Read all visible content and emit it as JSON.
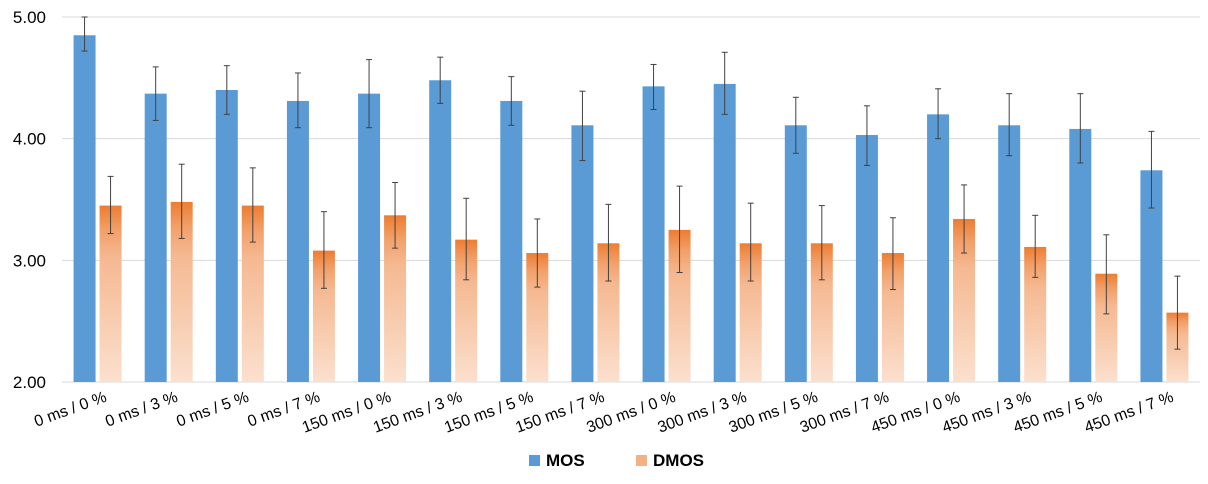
{
  "chart_data": {
    "type": "bar",
    "title": "",
    "xlabel": "",
    "ylabel": "",
    "ylim": [
      2.0,
      5.0
    ],
    "yticks": [
      "2.00",
      "3.00",
      "4.00",
      "5.00"
    ],
    "grid": true,
    "legend_position": "bottom-center",
    "categories": [
      "0 ms / 0 %",
      "0 ms / 3 %",
      "0 ms / 5 %",
      "0 ms / 7 %",
      "150 ms / 0 %",
      "150 ms / 3 %",
      "150 ms / 5 %",
      "150 ms / 7 %",
      "300 ms / 0 %",
      "300 ms / 3 %",
      "300 ms / 5 %",
      "300 ms / 7 %",
      "450 ms / 0 %",
      "450 ms / 3 %",
      "450 ms / 5 %",
      "450 ms / 7 %"
    ],
    "series": [
      {
        "name": "MOS",
        "color": "#5b9bd5",
        "values": [
          4.85,
          4.37,
          4.4,
          4.31,
          4.37,
          4.48,
          4.31,
          4.11,
          4.43,
          4.45,
          4.11,
          4.03,
          4.2,
          4.11,
          4.08,
          3.74
        ],
        "error_low": [
          4.72,
          4.15,
          4.2,
          4.09,
          4.09,
          4.29,
          4.11,
          3.82,
          4.24,
          4.2,
          3.88,
          3.78,
          4.0,
          3.86,
          3.8,
          3.43
        ],
        "error_high": [
          5.0,
          4.59,
          4.6,
          4.54,
          4.65,
          4.67,
          4.51,
          4.39,
          4.61,
          4.71,
          4.34,
          4.27,
          4.41,
          4.37,
          4.37,
          4.06
        ]
      },
      {
        "name": "DMOS",
        "color": "#ed7d31",
        "color_light": "#fbe0ce",
        "values": [
          3.45,
          3.48,
          3.45,
          3.08,
          3.37,
          3.17,
          3.06,
          3.14,
          3.25,
          3.14,
          3.14,
          3.06,
          3.34,
          3.11,
          2.89,
          2.57
        ],
        "error_low": [
          3.22,
          3.18,
          3.15,
          2.77,
          3.1,
          2.84,
          2.78,
          2.83,
          2.9,
          2.83,
          2.84,
          2.76,
          3.06,
          2.86,
          2.56,
          2.27
        ],
        "error_high": [
          3.69,
          3.79,
          3.76,
          3.4,
          3.64,
          3.51,
          3.34,
          3.46,
          3.61,
          3.47,
          3.45,
          3.35,
          3.62,
          3.37,
          3.21,
          2.87
        ]
      }
    ]
  }
}
